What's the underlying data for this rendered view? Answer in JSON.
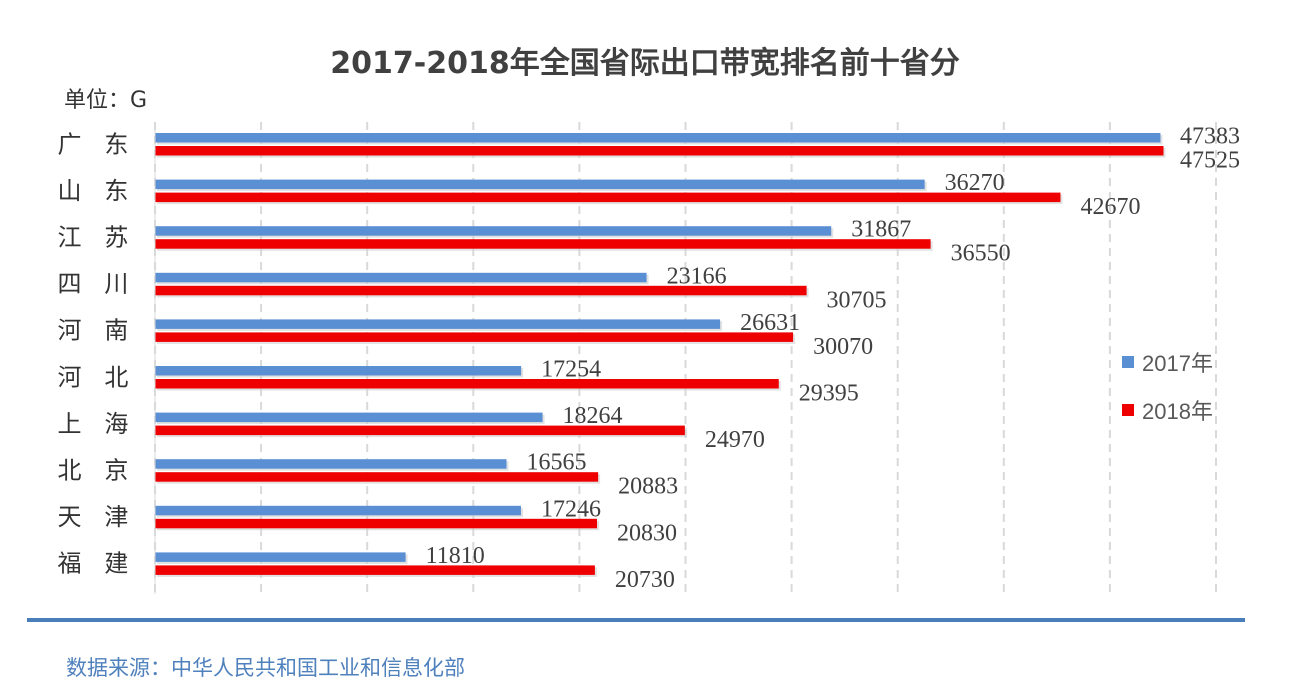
{
  "chart_data": {
    "type": "bar",
    "orientation": "horizontal",
    "title": "2017-2018年全国省际出口带宽排名前十省分",
    "unit_label": "单位：G",
    "categories": [
      "广 东",
      "山 东",
      "江 苏",
      "四 川",
      "河 南",
      "河 北",
      "上 海",
      "北 京",
      "天 津",
      "福 建"
    ],
    "series": [
      {
        "name": "2017年",
        "color": "#5b8fd4",
        "values": [
          47383,
          36270,
          31867,
          23166,
          26631,
          17254,
          18264,
          16565,
          17246,
          11810
        ]
      },
      {
        "name": "2018年",
        "color": "#ee0000",
        "values": [
          47525,
          42670,
          36550,
          30705,
          30070,
          29395,
          24970,
          20883,
          20830,
          20730
        ]
      }
    ],
    "xlim": [
      0,
      50000
    ],
    "grid": "vertical-dashed",
    "legend": "right"
  },
  "source_text": "数据来源：中华人民共和国工业和信息化部"
}
